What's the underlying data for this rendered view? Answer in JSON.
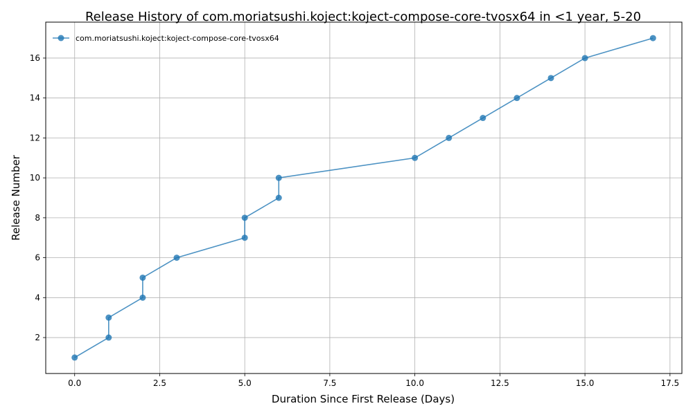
{
  "chart_data": {
    "type": "line",
    "title": "Release History of com.moriatsushi.koject:koject-compose-core-tvosx64 in <1 year, 5-20",
    "xlabel": "Duration Since First Release (Days)",
    "ylabel": "Release Number",
    "xlim": [
      -0.85,
      17.85
    ],
    "ylim": [
      0.2,
      17.8
    ],
    "xticks": [
      0.0,
      2.5,
      5.0,
      7.5,
      10.0,
      12.5,
      15.0,
      17.5
    ],
    "xtick_labels": [
      "0.0",
      "2.5",
      "5.0",
      "7.5",
      "10.0",
      "12.5",
      "15.0",
      "17.5"
    ],
    "yticks": [
      2,
      4,
      6,
      8,
      10,
      12,
      14,
      16
    ],
    "ytick_labels": [
      "2",
      "4",
      "6",
      "8",
      "10",
      "12",
      "14",
      "16"
    ],
    "grid": true,
    "legend_position": "upper-left",
    "series": [
      {
        "name": "com.moriatsushi.koject:koject-compose-core-tvosx64",
        "color": "#1f77b4",
        "marker": "circle",
        "x": [
          0,
          1,
          1,
          2,
          2,
          3,
          5,
          5,
          6,
          6,
          10,
          11,
          12,
          13,
          14,
          15,
          17
        ],
        "y": [
          1,
          2,
          3,
          4,
          5,
          6,
          7,
          8,
          9,
          10,
          11,
          12,
          13,
          14,
          15,
          16,
          17
        ]
      }
    ]
  }
}
